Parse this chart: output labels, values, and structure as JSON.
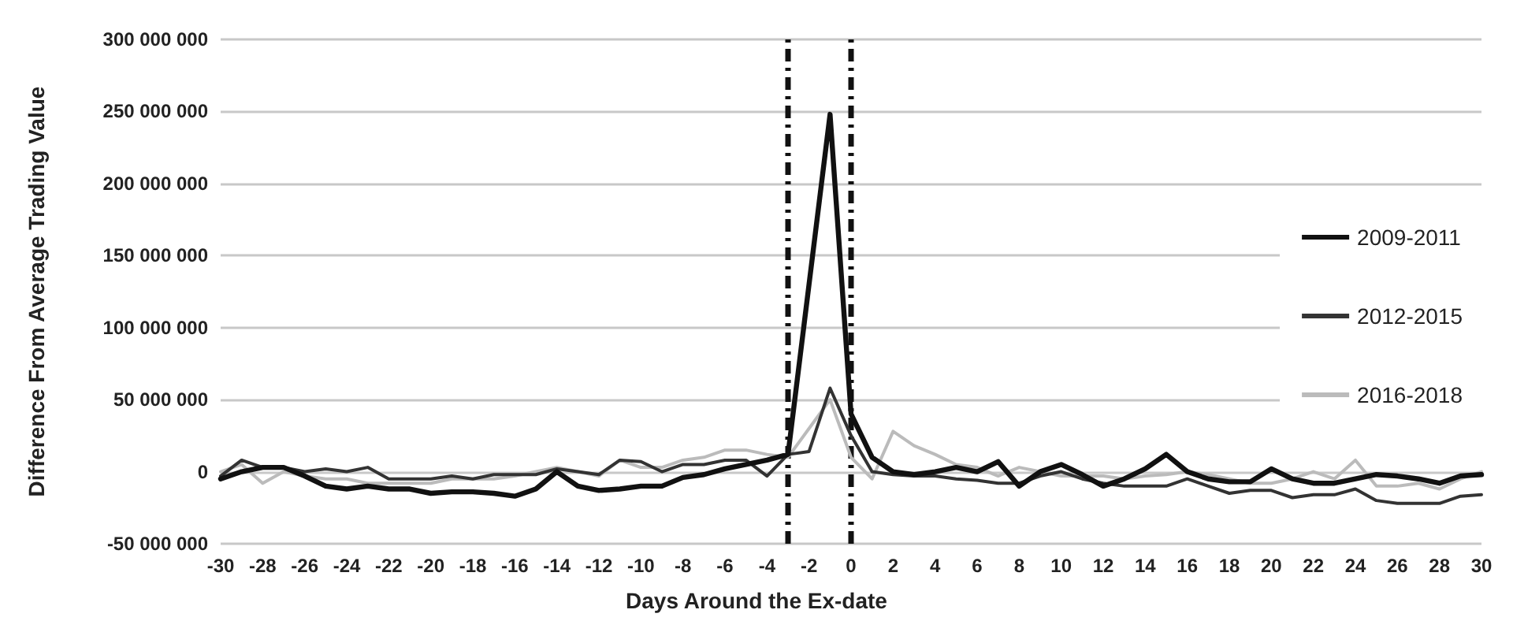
{
  "chart_data": {
    "type": "line",
    "xlabel": "Days Around the Ex-date",
    "ylabel": "Difference From Average Trading Value",
    "x": [
      -30,
      -29,
      -28,
      -27,
      -26,
      -25,
      -24,
      -23,
      -22,
      -21,
      -20,
      -19,
      -18,
      -17,
      -16,
      -15,
      -14,
      -13,
      -12,
      -11,
      -10,
      -9,
      -8,
      -7,
      -6,
      -5,
      -4,
      -3,
      -2,
      -1,
      0,
      1,
      2,
      3,
      4,
      5,
      6,
      7,
      8,
      9,
      10,
      11,
      12,
      13,
      14,
      15,
      16,
      17,
      18,
      19,
      20,
      21,
      22,
      23,
      24,
      25,
      26,
      27,
      28,
      29,
      30
    ],
    "series": [
      {
        "name": "2009-2011",
        "color": "#111111",
        "values": [
          -5000000,
          0,
          3000000,
          3000000,
          -3000000,
          -10000000,
          -12000000,
          -10000000,
          -12000000,
          -12000000,
          -15000000,
          -14000000,
          -14000000,
          -15000000,
          -17000000,
          -12000000,
          0,
          -10000000,
          -13000000,
          -12000000,
          -10000000,
          -10000000,
          -4000000,
          -2000000,
          2000000,
          5000000,
          8000000,
          12000000,
          130000000,
          248000000,
          40000000,
          10000000,
          0,
          -2000000,
          0,
          3000000,
          0,
          7000000,
          -10000000,
          0,
          5000000,
          -2000000,
          -10000000,
          -5000000,
          2000000,
          12000000,
          0,
          -5000000,
          -7000000,
          -7000000,
          2000000,
          -5000000,
          -8000000,
          -8000000,
          -5000000,
          -2000000,
          -3000000,
          -5000000,
          -8000000,
          -3000000,
          -2000000
        ]
      },
      {
        "name": "2012-2015",
        "color": "#333333",
        "values": [
          -3000000,
          8000000,
          3000000,
          3000000,
          0,
          2000000,
          0,
          3000000,
          -5000000,
          -5000000,
          -5000000,
          -3000000,
          -5000000,
          -2000000,
          -2000000,
          -2000000,
          2000000,
          0,
          -2000000,
          8000000,
          7000000,
          0,
          5000000,
          5000000,
          8000000,
          8000000,
          -3000000,
          12000000,
          14000000,
          58000000,
          25000000,
          0,
          -2000000,
          -3000000,
          -3000000,
          -5000000,
          -6000000,
          -8000000,
          -8000000,
          -3000000,
          0,
          -5000000,
          -8000000,
          -10000000,
          -10000000,
          -10000000,
          -5000000,
          -10000000,
          -15000000,
          -13000000,
          -13000000,
          -18000000,
          -16000000,
          -16000000,
          -12000000,
          -20000000,
          -22000000,
          -22000000,
          -22000000,
          -17000000,
          -16000000
        ]
      },
      {
        "name": "2016-2018",
        "color": "#bbbbbb",
        "values": [
          0,
          5000000,
          -8000000,
          0,
          -3000000,
          -5000000,
          -5000000,
          -8000000,
          -8000000,
          -8000000,
          -8000000,
          -5000000,
          -5000000,
          -5000000,
          -3000000,
          0,
          3000000,
          0,
          -3000000,
          8000000,
          3000000,
          3000000,
          8000000,
          10000000,
          15000000,
          15000000,
          12000000,
          10000000,
          30000000,
          50000000,
          10000000,
          -5000000,
          28000000,
          18000000,
          12000000,
          5000000,
          3000000,
          -3000000,
          3000000,
          0,
          -3000000,
          -3000000,
          -3000000,
          -5000000,
          -3000000,
          -2000000,
          0,
          -2000000,
          -5000000,
          -8000000,
          -8000000,
          -5000000,
          0,
          -5000000,
          8000000,
          -10000000,
          -10000000,
          -8000000,
          -12000000,
          -5000000,
          0
        ]
      }
    ],
    "xlim": [
      -30,
      30
    ],
    "xticks": [
      -30,
      -28,
      -26,
      -24,
      -22,
      -20,
      -18,
      -16,
      -14,
      -12,
      -10,
      -8,
      -6,
      -4,
      -2,
      0,
      2,
      4,
      6,
      8,
      10,
      12,
      14,
      16,
      18,
      20,
      22,
      24,
      26,
      28,
      30
    ],
    "ylim": [
      -50000000,
      300000000
    ],
    "yticks": [
      {
        "value": -50000000,
        "label": "-50 000 000"
      },
      {
        "value": 0,
        "label": "0"
      },
      {
        "value": 50000000,
        "label": "50 000 000"
      },
      {
        "value": 100000000,
        "label": "100 000 000"
      },
      {
        "value": 150000000,
        "label": "150 000 000"
      },
      {
        "value": 200000000,
        "label": "200 000 000"
      },
      {
        "value": 250000000,
        "label": "250 000 000"
      },
      {
        "value": 300000000,
        "label": "300 000 000"
      }
    ],
    "ref_lines": [
      {
        "axis": "x",
        "value": -3,
        "color": "#111111",
        "line_style": "dashed"
      },
      {
        "axis": "x",
        "value": 0,
        "color": "#111111",
        "line_style": "dashed"
      }
    ],
    "grid": "y",
    "legend": "right",
    "marker": "none",
    "line_style": "solid"
  }
}
